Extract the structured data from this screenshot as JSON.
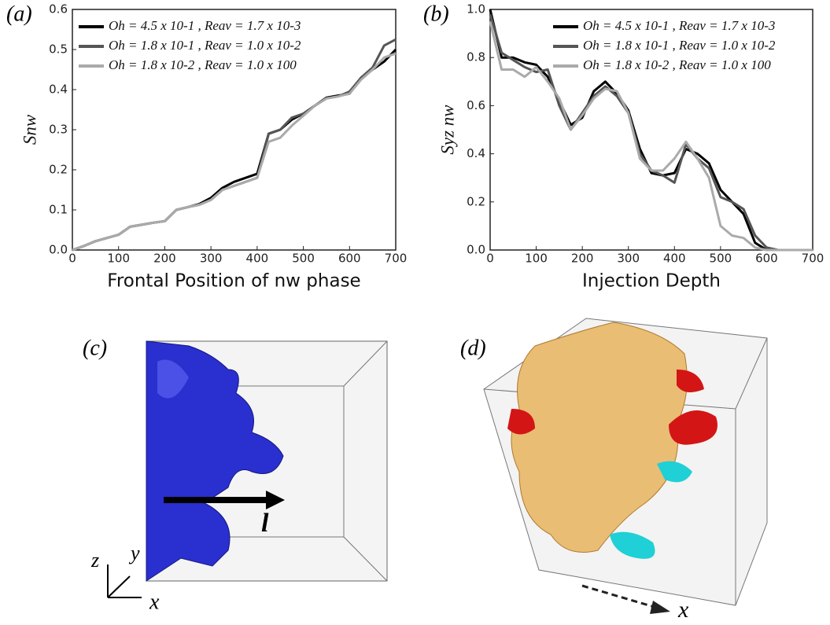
{
  "chart_data": [
    {
      "type": "line",
      "panel": "(a)",
      "x_label": "Frontal Position of nw phase",
      "y_label": "Snw",
      "legend": "upper left",
      "x": [
        0,
        25,
        50,
        75,
        100,
        125,
        150,
        175,
        200,
        225,
        250,
        275,
        300,
        325,
        350,
        375,
        400,
        425,
        450,
        475,
        500,
        525,
        550,
        575,
        600,
        625,
        650,
        675,
        700
      ],
      "series": [
        {
          "name": "Oh = 4.5 x 10-1 , Reav = 1.7 x 10-3",
          "color": "#000000",
          "values": [
            0,
            0.01,
            0.022,
            0.03,
            0.038,
            0.058,
            0.063,
            0.068,
            0.072,
            0.1,
            0.107,
            0.115,
            0.13,
            0.155,
            0.17,
            0.18,
            0.19,
            0.29,
            0.3,
            0.325,
            0.34,
            0.36,
            0.38,
            0.385,
            0.39,
            0.43,
            0.45,
            0.47,
            0.5
          ]
        },
        {
          "name": "Oh = 1.8 x 10-1 , Reav = 1.0 x 10-2",
          "color": "#555555",
          "values": [
            0,
            0.01,
            0.022,
            0.03,
            0.038,
            0.058,
            0.063,
            0.068,
            0.072,
            0.1,
            0.107,
            0.113,
            0.125,
            0.15,
            0.16,
            0.17,
            0.18,
            0.29,
            0.3,
            0.33,
            0.34,
            0.36,
            0.378,
            0.383,
            0.395,
            0.43,
            0.455,
            0.51,
            0.525
          ]
        },
        {
          "name": "Oh = 1.8 x 10-2 , Reav = 1.0 x 100",
          "color": "#aaaaaa",
          "values": [
            0,
            0.01,
            0.022,
            0.03,
            0.038,
            0.058,
            0.063,
            0.068,
            0.072,
            0.1,
            0.107,
            0.113,
            0.125,
            0.15,
            0.16,
            0.17,
            0.18,
            0.27,
            0.28,
            0.31,
            0.335,
            0.36,
            0.378,
            0.383,
            0.39,
            0.425,
            0.45,
            0.48,
            0.49
          ]
        }
      ],
      "xlim": [
        0,
        700
      ],
      "xticks": [
        0,
        100,
        200,
        300,
        400,
        500,
        600,
        700
      ],
      "ylim": [
        0,
        0.6
      ],
      "yticks": [
        {
          "value": 0,
          "label": "0.0"
        },
        0.1,
        0.2,
        0.3,
        0.4,
        0.5,
        0.6
      ]
    },
    {
      "type": "line",
      "panel": "(b)",
      "x_label": "Injection Depth",
      "y_label": "Syz nw",
      "legend": "upper right",
      "x": [
        0,
        25,
        50,
        75,
        100,
        125,
        150,
        175,
        200,
        225,
        250,
        275,
        300,
        325,
        350,
        375,
        400,
        425,
        450,
        475,
        500,
        525,
        550,
        575,
        600,
        625,
        650,
        675,
        700
      ],
      "series": [
        {
          "name": "Oh = 4.5 x 10-1 , Reav = 1.7 x 10-3",
          "color": "#000000",
          "values": [
            1.0,
            0.8,
            0.8,
            0.78,
            0.77,
            0.72,
            0.62,
            0.52,
            0.55,
            0.66,
            0.7,
            0.65,
            0.58,
            0.42,
            0.32,
            0.31,
            0.32,
            0.42,
            0.4,
            0.36,
            0.25,
            0.2,
            0.15,
            0.03,
            0,
            0,
            0,
            0,
            0
          ]
        },
        {
          "name": "Oh = 1.8 x 10-1 , Reav = 1.0 x 10-2",
          "color": "#555555",
          "values": [
            0.98,
            0.82,
            0.79,
            0.76,
            0.74,
            0.75,
            0.6,
            0.5,
            0.57,
            0.64,
            0.68,
            0.64,
            0.57,
            0.4,
            0.33,
            0.31,
            0.28,
            0.44,
            0.38,
            0.34,
            0.22,
            0.2,
            0.17,
            0.06,
            0.01,
            0,
            0,
            0,
            0
          ]
        },
        {
          "name": "Oh = 1.8 x 10-2 , Reav = 1.0 x 100",
          "color": "#aaaaaa",
          "values": [
            0.95,
            0.75,
            0.75,
            0.72,
            0.76,
            0.7,
            0.63,
            0.5,
            0.56,
            0.63,
            0.67,
            0.66,
            0.57,
            0.38,
            0.33,
            0.33,
            0.38,
            0.45,
            0.38,
            0.3,
            0.1,
            0.06,
            0.05,
            0.01,
            0,
            0,
            0,
            0,
            0
          ]
        }
      ],
      "xlim": [
        0,
        700
      ],
      "xticks": [
        0,
        100,
        200,
        300,
        400,
        500,
        600,
        700
      ],
      "ylim": [
        0,
        1
      ],
      "yticks": [
        {
          "value": 0,
          "label": "0.0"
        },
        0.2,
        0.4,
        0.6,
        0.8,
        {
          "value": 1,
          "label": "1.0"
        }
      ]
    }
  ],
  "figure": {
    "panel_c": {
      "label": "(c)",
      "axes": [
        "z",
        "y",
        "x",
        "l"
      ]
    },
    "panel_d": {
      "label": "(d)",
      "axes": [
        "x"
      ]
    }
  }
}
